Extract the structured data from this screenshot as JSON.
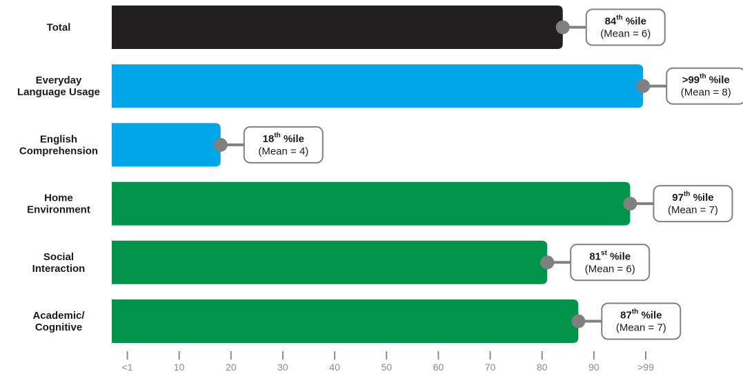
{
  "chart_data": {
    "type": "bar",
    "orientation": "horizontal",
    "categories": [
      [
        "Total"
      ],
      [
        "Everyday",
        "Language Usage"
      ],
      [
        "English",
        "Comprehension"
      ],
      [
        "Home",
        "Environment"
      ],
      [
        "Social",
        "Interaction"
      ],
      [
        "Academic/",
        "Cognitive"
      ]
    ],
    "values": [
      84,
      99.5,
      18,
      97,
      81,
      87
    ],
    "bar_colors": [
      "#231f20",
      "#00a6e8",
      "#00a6e8",
      "#00934a",
      "#00934a",
      "#00934a"
    ],
    "callouts": [
      {
        "prefix": "",
        "number": "84",
        "suffix": "th",
        "unit": " %ile",
        "mean": "(Mean = 6)"
      },
      {
        "prefix": ">",
        "number": "99",
        "suffix": "th",
        "unit": " %ile",
        "mean": "(Mean = 8)"
      },
      {
        "prefix": "",
        "number": "18",
        "suffix": "th",
        "unit": " %ile",
        "mean": "(Mean = 4)"
      },
      {
        "prefix": "",
        "number": "97",
        "suffix": "th",
        "unit": " %ile",
        "mean": "(Mean = 7)"
      },
      {
        "prefix": "",
        "number": "81",
        "suffix": "st",
        "unit": " %ile",
        "mean": "(Mean = 6)"
      },
      {
        "prefix": "",
        "number": "87",
        "suffix": "th",
        "unit": " %ile",
        "mean": "(Mean = 7)"
      }
    ],
    "x_ticks": [
      {
        "value": 0,
        "label": "<1"
      },
      {
        "value": 10,
        "label": "10"
      },
      {
        "value": 20,
        "label": "20"
      },
      {
        "value": 30,
        "label": "30"
      },
      {
        "value": 40,
        "label": "40"
      },
      {
        "value": 50,
        "label": "50"
      },
      {
        "value": 60,
        "label": "60"
      },
      {
        "value": 70,
        "label": "70"
      },
      {
        "value": 80,
        "label": "80"
      },
      {
        "value": 90,
        "label": "90"
      },
      {
        "value": 100,
        "label": ">99"
      }
    ],
    "xlim": [
      -3,
      100
    ],
    "title": "",
    "xlabel": "",
    "ylabel": "",
    "grid": false,
    "legend": "none",
    "marker_color": "#808080",
    "callout_border_color": "#808080",
    "tick_color": "#8a8a8a"
  }
}
